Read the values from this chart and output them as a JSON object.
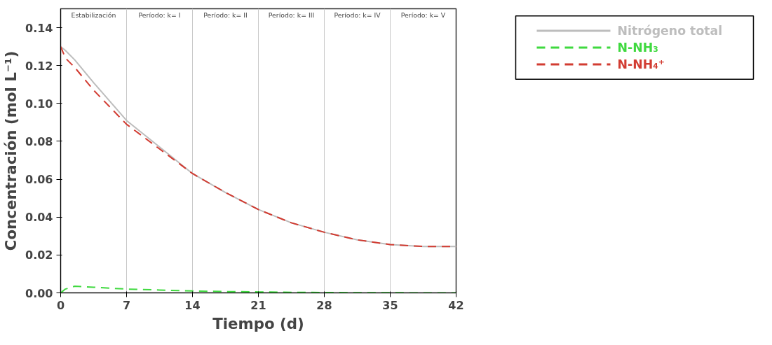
{
  "chart_data": {
    "type": "line",
    "xlabel": "Tiempo (d)",
    "ylabel": "Concentración (mol L⁻¹)",
    "xlim": [
      0,
      42
    ],
    "ylim": [
      0,
      0.15
    ],
    "xticks": [
      0,
      7,
      14,
      21,
      28,
      35,
      42
    ],
    "yticks": [
      {
        "value": 0,
        "label": "0.00"
      },
      {
        "value": 0.02,
        "label": "0.02"
      },
      {
        "value": 0.04,
        "label": "0.04"
      },
      {
        "value": 0.06,
        "label": "0.06"
      },
      {
        "value": 0.08,
        "label": "0.08"
      },
      {
        "value": 0.1,
        "label": "0.10"
      },
      {
        "value": 0.12,
        "label": "0.12"
      },
      {
        "value": 0.14,
        "label": "0.14"
      }
    ],
    "grid": "x",
    "legend": "top right",
    "marker": "none",
    "annotations": [
      "Estabilización",
      "Período: k= I",
      "Período: k= II",
      "Período: k= III",
      "Período: k= IV",
      "Período: k= V"
    ],
    "x": [
      0,
      0.5,
      1.5,
      3.5,
      7,
      10.5,
      14,
      17.5,
      21,
      24.5,
      28,
      31.5,
      35,
      38.5,
      42
    ],
    "series": [
      {
        "name": "Nitrógeno total",
        "color": "#bdbdbd",
        "line_style": "solid",
        "values": [
          0.13,
          0.128,
          0.123,
          0.111,
          0.091,
          0.077,
          0.063,
          0.053,
          0.044,
          0.037,
          0.032,
          0.028,
          0.0255,
          0.0245,
          0.0245
        ]
      },
      {
        "name": "N-NH₃",
        "color": "#3fd93f",
        "line_style": "dashed",
        "values": [
          0,
          0.002,
          0.0035,
          0.003,
          0.002,
          0.0015,
          0.001,
          0.0007,
          0.0005,
          0.0003,
          0.0002,
          0.0001,
          0.0001,
          0,
          0
        ]
      },
      {
        "name": "N-NH₄⁺",
        "color": "#d23c32",
        "line_style": "dashed",
        "values": [
          0.13,
          0.124,
          0.119,
          0.107,
          0.089,
          0.076,
          0.063,
          0.053,
          0.044,
          0.037,
          0.032,
          0.028,
          0.0255,
          0.0245,
          0.0245
        ]
      }
    ]
  }
}
